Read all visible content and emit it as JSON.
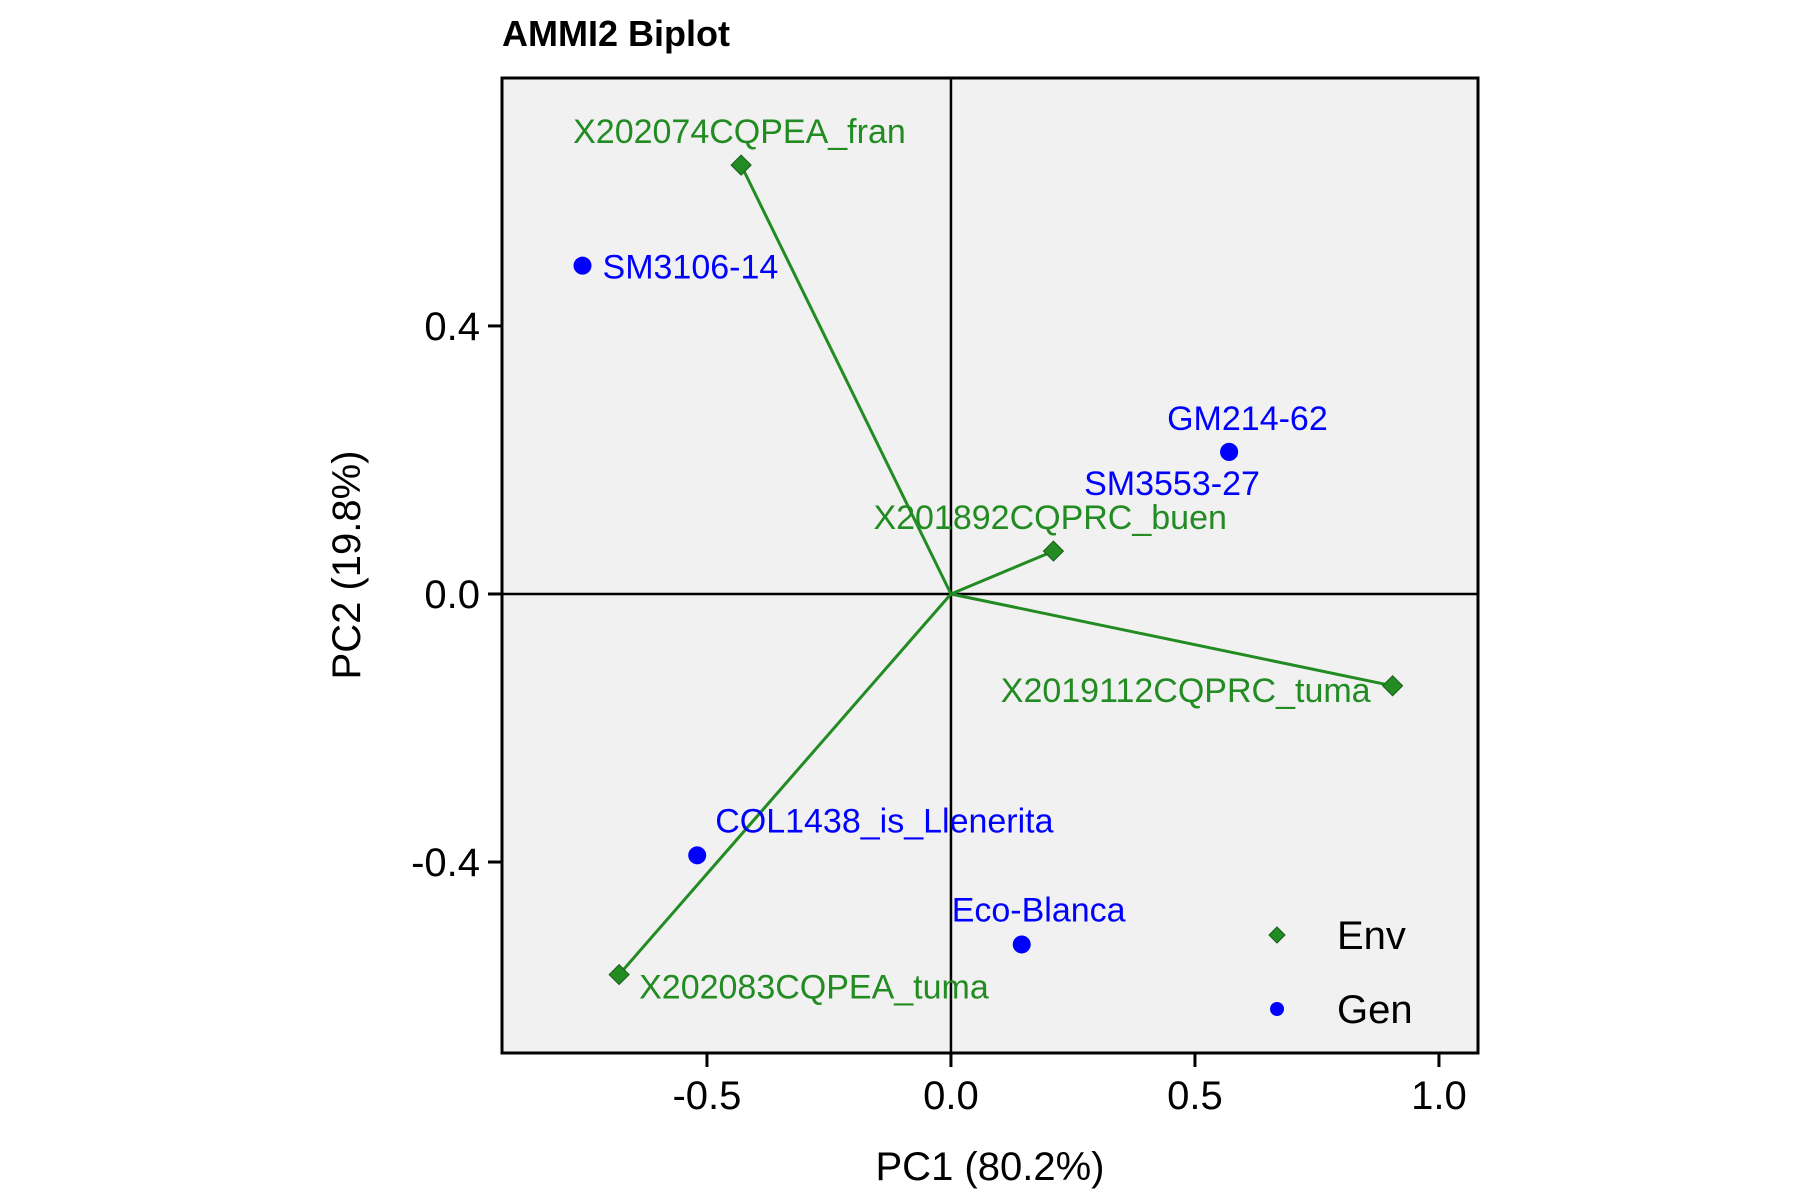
{
  "chart_data": {
    "type": "scatter",
    "title": "AMMI2 Biplot",
    "xlabel": "PC1 (80.2%)",
    "ylabel": "PC2 (19.8%)",
    "xlim": [
      -0.92,
      1.08
    ],
    "ylim": [
      -0.685,
      0.77
    ],
    "xticks": [
      -0.5,
      0.0,
      0.5,
      1.0
    ],
    "xtick_labels": [
      "-0.5",
      "0.0",
      "0.5",
      "1.0"
    ],
    "yticks": [
      -0.4,
      0.0,
      0.4
    ],
    "ytick_labels": [
      "-0.4",
      "0.0",
      "0.4"
    ],
    "grid": false,
    "background": "#f1f1f1",
    "reference_lines": {
      "x": 0,
      "y": 0
    },
    "legend_position": "bottom-right",
    "legend": [
      {
        "label": "Env",
        "marker": "diamond",
        "color": "#228b22"
      },
      {
        "label": "Gen",
        "marker": "circle",
        "color": "#0000ff"
      }
    ],
    "series": [
      {
        "name": "Env",
        "marker": "diamond",
        "color": "#228b22",
        "vectors_from_origin": true,
        "points": [
          {
            "label": "X202074CQPEA_fran",
            "x": -0.43,
            "y": 0.64
          },
          {
            "label": "X201892CQPRC_buen",
            "x": 0.21,
            "y": 0.064
          },
          {
            "label": "X2019112CQPRC_tuma",
            "x": 0.905,
            "y": -0.137
          },
          {
            "label": "X202083CQPEA_tuma",
            "x": -0.68,
            "y": -0.568
          }
        ]
      },
      {
        "name": "Gen",
        "marker": "circle",
        "color": "#0000ff",
        "points": [
          {
            "label": "SM3106-14",
            "x": -0.755,
            "y": 0.49
          },
          {
            "label": "GM214-62",
            "x": 0.57,
            "y": 0.212
          },
          {
            "label": "SM3553-27",
            "x": 0.57,
            "y": 0.212
          },
          {
            "label": "COL1438_is_Llenerita",
            "x": -0.52,
            "y": -0.39
          },
          {
            "label": "Eco-Blanca",
            "x": 0.145,
            "y": -0.523
          }
        ]
      }
    ]
  }
}
